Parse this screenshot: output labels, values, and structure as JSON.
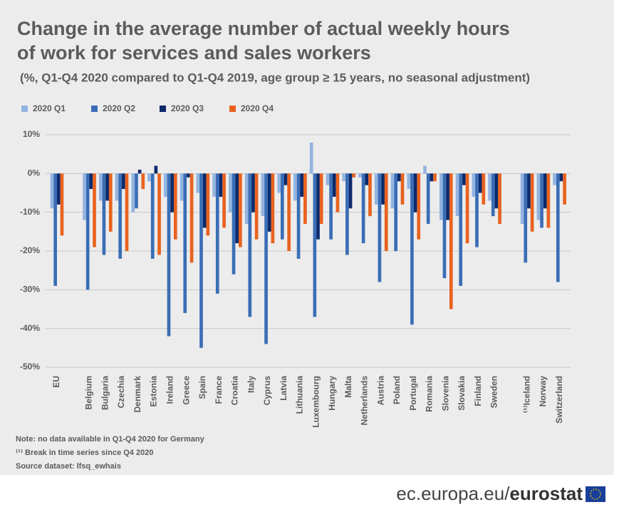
{
  "chart_data": {
    "type": "bar",
    "title_lines": [
      "Change in the average number of actual weekly hours",
      "of work for services and sales workers"
    ],
    "subtitle": "(%, Q1-Q4 2020 compared to Q1-Q4 2019, age group ≥ 15 years, no seasonal adjustment)",
    "categories": [
      "EU",
      null,
      "Belgium",
      "Bulgaria",
      "Czechia",
      "Denmark",
      "Estonia",
      "Ireland",
      "Greece",
      "Spain",
      "France",
      "Croatia",
      "Italy",
      "Cyprus",
      "Latvia",
      "Lithuania",
      "Luxembourg",
      "Hungary",
      "Malta",
      "Netherlands",
      "Austria",
      "Poland",
      "Portugal",
      "Romania",
      "Slovenia",
      "Slovakia",
      "Finland",
      "Sweden",
      null,
      "⁽¹⁾Iceland",
      "Norway",
      "Switzerland"
    ],
    "series": [
      {
        "name": "2020 Q1",
        "color": "#94b4e0",
        "values": [
          -9,
          null,
          -12,
          -7,
          -7,
          -10,
          -2,
          -6,
          -7,
          -5,
          -6,
          -10,
          -13,
          -11,
          -5,
          -7,
          8,
          -3,
          -2,
          -1,
          -8,
          -9,
          -4,
          2,
          -12,
          -11,
          -6,
          -7,
          null,
          -13,
          -12,
          -3
        ]
      },
      {
        "name": "2020 Q2",
        "color": "#3a6db5",
        "values": [
          -29,
          null,
          -30,
          -21,
          -22,
          -9,
          -22,
          -42,
          -36,
          -45,
          -31,
          -26,
          -37,
          -44,
          -17,
          -22,
          -37,
          -17,
          -21,
          -18,
          -28,
          -20,
          -39,
          -13,
          -27,
          -29,
          -19,
          -11,
          null,
          -23,
          -14,
          -28
        ]
      },
      {
        "name": "2020 Q3",
        "color": "#0c2a6b",
        "values": [
          -8,
          null,
          -4,
          -7,
          -4,
          1,
          2,
          -10,
          -1,
          -14,
          -6,
          -18,
          -10,
          -15,
          -3,
          -6,
          -17,
          -6,
          -9,
          -3,
          -8,
          -2,
          -10,
          -2,
          -12,
          -3,
          -5,
          -9,
          null,
          -9,
          -9,
          -2
        ]
      },
      {
        "name": "2020 Q4",
        "color": "#e8621f",
        "values": [
          -16,
          null,
          -19,
          -15,
          -20,
          -4,
          -21,
          -17,
          -23,
          -16,
          -14,
          -19,
          -17,
          -18,
          -20,
          -13,
          -13,
          -10,
          -1,
          -11,
          -20,
          -8,
          -17,
          -2,
          -35,
          -18,
          -8,
          -13,
          null,
          -15,
          -14,
          -8
        ]
      }
    ],
    "ylim": [
      -50,
      10
    ],
    "yticks": [
      {
        "value": -50,
        "label": "-50%"
      },
      {
        "value": -40,
        "label": "-40%"
      },
      {
        "value": -30,
        "label": "-30%"
      },
      {
        "value": -20,
        "label": "-20%"
      },
      {
        "value": -10,
        "label": "-10%"
      },
      {
        "value": 0,
        "label": "0%"
      },
      {
        "value": 10,
        "label": "10%"
      }
    ],
    "grid": true,
    "notes": [
      "Note: no data available in Q1-Q4 2020 for Germany",
      "⁽¹⁾ Break in time series since Q4 2020",
      "Source dataset: lfsq_ewhais"
    ]
  },
  "footer": {
    "site": "ec.europa.eu/",
    "brand": "eurostat"
  }
}
